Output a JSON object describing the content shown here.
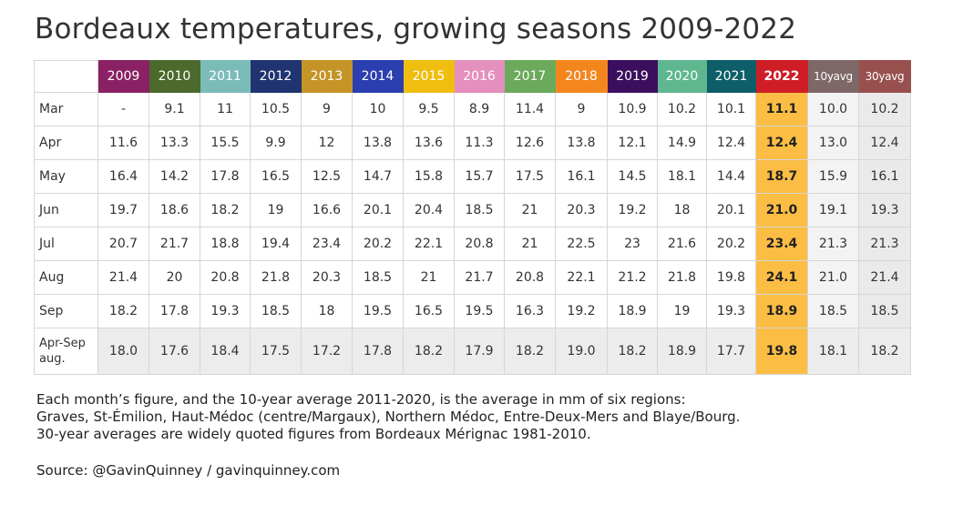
{
  "chart_data": {
    "type": "table",
    "title": "Bordeaux temperatures, growing seasons 2009-2022",
    "columns": [
      {
        "label": "2009",
        "color": "#8b2165"
      },
      {
        "label": "2010",
        "color": "#4b6a2b"
      },
      {
        "label": "2011",
        "color": "#7bbcb9"
      },
      {
        "label": "2012",
        "color": "#1f3470"
      },
      {
        "label": "2013",
        "color": "#c49427"
      },
      {
        "label": "2014",
        "color": "#2b3fb0"
      },
      {
        "label": "2015",
        "color": "#f0be10"
      },
      {
        "label": "2016",
        "color": "#e58fbe"
      },
      {
        "label": "2017",
        "color": "#6aaa5a"
      },
      {
        "label": "2018",
        "color": "#f4861e"
      },
      {
        "label": "2019",
        "color": "#3b0f5e"
      },
      {
        "label": "2020",
        "color": "#5fb78f"
      },
      {
        "label": "2021",
        "color": "#0e5e6a"
      },
      {
        "label": "2022",
        "color": "#cf1d26"
      },
      {
        "label": "10yavg",
        "color": "#7e6767"
      },
      {
        "label": "30yavg",
        "color": "#98504f"
      }
    ],
    "highlight_column": "2022",
    "highlight_color": "#fbbd44",
    "rows": [
      {
        "label": "Mar",
        "values": [
          "-",
          "9.1",
          "11",
          "10.5",
          "9",
          "10",
          "9.5",
          "8.9",
          "11.4",
          "9",
          "10.9",
          "10.2",
          "10.1",
          "11.1",
          "10.0",
          "10.2"
        ]
      },
      {
        "label": "Apr",
        "values": [
          "11.6",
          "13.3",
          "15.5",
          "9.9",
          "12",
          "13.8",
          "13.6",
          "11.3",
          "12.6",
          "13.8",
          "12.1",
          "14.9",
          "12.4",
          "12.4",
          "13.0",
          "12.4"
        ]
      },
      {
        "label": "May",
        "values": [
          "16.4",
          "14.2",
          "17.8",
          "16.5",
          "12.5",
          "14.7",
          "15.8",
          "15.7",
          "17.5",
          "16.1",
          "14.5",
          "18.1",
          "14.4",
          "18.7",
          "15.9",
          "16.1"
        ]
      },
      {
        "label": "Jun",
        "values": [
          "19.7",
          "18.6",
          "18.2",
          "19",
          "16.6",
          "20.1",
          "20.4",
          "18.5",
          "21",
          "20.3",
          "19.2",
          "18",
          "20.1",
          "21.0",
          "19.1",
          "19.3"
        ]
      },
      {
        "label": "Jul",
        "values": [
          "20.7",
          "21.7",
          "18.8",
          "19.4",
          "23.4",
          "20.2",
          "22.1",
          "20.8",
          "21",
          "22.5",
          "23",
          "21.6",
          "20.2",
          "23.4",
          "21.3",
          "21.3"
        ]
      },
      {
        "label": "Aug",
        "values": [
          "21.4",
          "20",
          "20.8",
          "21.8",
          "20.3",
          "18.5",
          "21",
          "21.7",
          "20.8",
          "22.1",
          "21.2",
          "21.8",
          "19.8",
          "24.1",
          "21.0",
          "21.4"
        ]
      },
      {
        "label": "Sep",
        "values": [
          "18.2",
          "17.8",
          "19.3",
          "18.5",
          "18",
          "19.5",
          "16.5",
          "19.5",
          "16.3",
          "19.2",
          "18.9",
          "19",
          "19.3",
          "18.9",
          "18.5",
          "18.5"
        ]
      },
      {
        "label": "Apr-Sep aug.",
        "values": [
          "18.0",
          "17.6",
          "18.4",
          "17.5",
          "17.2",
          "17.8",
          "18.2",
          "17.9",
          "18.2",
          "19.0",
          "18.2",
          "18.9",
          "17.7",
          "19.8",
          "18.1",
          "18.2"
        ]
      }
    ]
  },
  "notes": {
    "line1": "Each month’s figure, and the 10-year average 2011-2020, is the average in mm of six regions:",
    "line2": "Graves, St-Émilion, Haut-Médoc (centre/Margaux), Northern Médoc, Entre-Deux-Mers and Blaye/Bourg.",
    "line3": "30-year averages are widely quoted figures from Bordeaux Mérignac 1981-2010.",
    "source": "Source: @GavinQuinney / gavinquinney.com"
  }
}
